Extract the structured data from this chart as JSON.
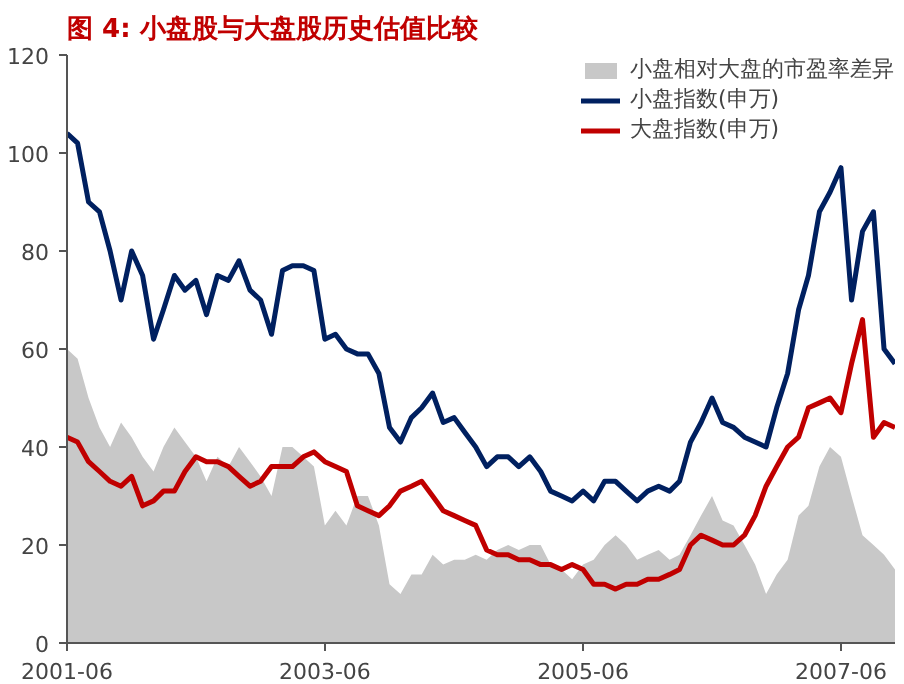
{
  "chart_data": {
    "type": "line",
    "title": "图 4: 小盘股与大盘股历史估值比较",
    "x": [
      "2001-06",
      "2001-07",
      "2001-08",
      "2001-09",
      "2001-10",
      "2001-11",
      "2001-12",
      "2002-01",
      "2002-02",
      "2002-03",
      "2002-04",
      "2002-05",
      "2002-06",
      "2002-07",
      "2002-08",
      "2002-09",
      "2002-10",
      "2002-11",
      "2002-12",
      "2003-01",
      "2003-02",
      "2003-03",
      "2003-04",
      "2003-05",
      "2003-06",
      "2003-07",
      "2003-08",
      "2003-09",
      "2003-10",
      "2003-11",
      "2003-12",
      "2004-01",
      "2004-02",
      "2004-03",
      "2004-04",
      "2004-05",
      "2004-06",
      "2004-07",
      "2004-08",
      "2004-09",
      "2004-10",
      "2004-11",
      "2004-12",
      "2005-01",
      "2005-02",
      "2005-03",
      "2005-04",
      "2005-05",
      "2005-06",
      "2005-07",
      "2005-08",
      "2005-09",
      "2005-10",
      "2005-11",
      "2005-12",
      "2006-01",
      "2006-02",
      "2006-03",
      "2006-04",
      "2006-05",
      "2006-06",
      "2006-07",
      "2006-08",
      "2006-09",
      "2006-10",
      "2006-11",
      "2006-12",
      "2007-01",
      "2007-02",
      "2007-03",
      "2007-04",
      "2007-05",
      "2007-06",
      "2007-07",
      "2007-08",
      "2007-09",
      "2007-10",
      "2007-11"
    ],
    "series": [
      {
        "name": "小盘相对大盘的市盈率差异",
        "type": "area",
        "color": "#c8c8c8",
        "values": [
          60,
          58,
          50,
          44,
          40,
          45,
          42,
          38,
          35,
          40,
          44,
          41,
          38,
          33,
          38,
          36,
          40,
          37,
          34,
          30,
          40,
          40,
          38,
          36,
          24,
          27,
          24,
          30,
          30,
          24,
          12,
          10,
          14,
          14,
          18,
          16,
          17,
          17,
          18,
          17,
          19,
          20,
          19,
          20,
          20,
          16,
          15,
          13,
          16,
          17,
          20,
          22,
          20,
          17,
          18,
          19,
          17,
          18,
          22,
          26,
          30,
          25,
          24,
          20,
          16,
          10,
          14,
          17,
          26,
          28,
          36,
          40,
          38,
          30,
          22,
          20,
          18,
          15
        ]
      },
      {
        "name": "小盘指数(申万)",
        "color": "#002060",
        "values": [
          104,
          102,
          90,
          88,
          80,
          70,
          80,
          75,
          62,
          68,
          75,
          72,
          74,
          67,
          75,
          74,
          78,
          72,
          70,
          63,
          76,
          77,
          77,
          76,
          62,
          63,
          60,
          59,
          59,
          55,
          44,
          41,
          46,
          48,
          51,
          45,
          46,
          43,
          40,
          36,
          38,
          38,
          36,
          38,
          35,
          31,
          30,
          29,
          31,
          29,
          33,
          33,
          31,
          29,
          31,
          32,
          31,
          33,
          41,
          45,
          50,
          45,
          44,
          42,
          41,
          40,
          48,
          55,
          68,
          75,
          88,
          92,
          97,
          70,
          84,
          88,
          60,
          57
        ]
      },
      {
        "name": "大盘指数(申万)",
        "color": "#c00000",
        "values": [
          42,
          41,
          37,
          35,
          33,
          32,
          34,
          28,
          29,
          31,
          31,
          35,
          38,
          37,
          37,
          36,
          34,
          32,
          33,
          36,
          36,
          36,
          38,
          39,
          37,
          36,
          35,
          28,
          27,
          26,
          28,
          31,
          32,
          33,
          30,
          27,
          26,
          25,
          24,
          19,
          18,
          18,
          17,
          17,
          16,
          16,
          15,
          16,
          15,
          12,
          12,
          11,
          12,
          12,
          13,
          13,
          14,
          15,
          20,
          22,
          21,
          20,
          20,
          22,
          26,
          32,
          36,
          40,
          42,
          48,
          49,
          50,
          47,
          57,
          66,
          42,
          45,
          44
        ]
      }
    ],
    "xlim": [
      "2001-06",
      "2007-11"
    ],
    "xticks": [
      "2001-06",
      "2003-06",
      "2005-06",
      "2007-06"
    ],
    "ylim": [
      0,
      120
    ],
    "yticks": [
      0,
      20,
      40,
      60,
      80,
      100,
      120
    ],
    "grid": false,
    "legend": "top right"
  }
}
